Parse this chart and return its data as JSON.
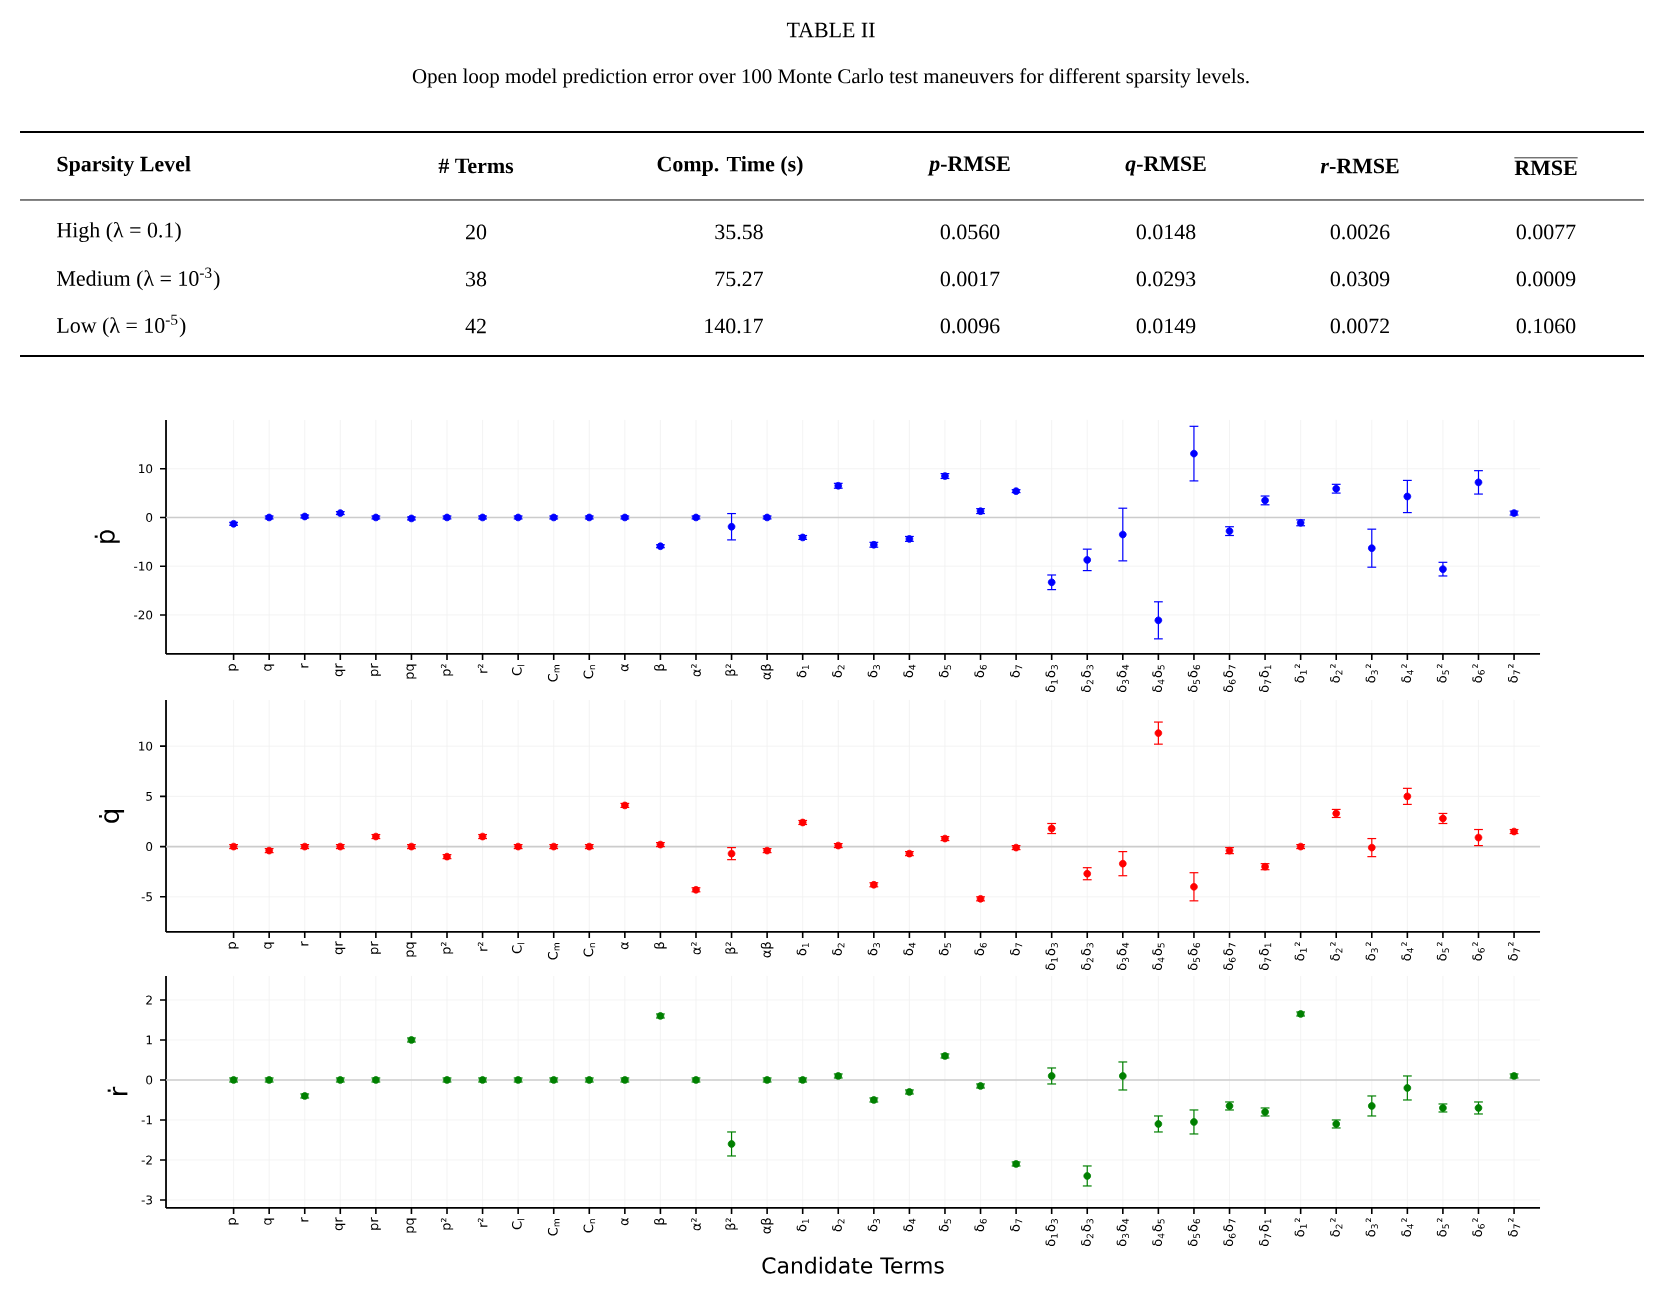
{
  "chart_data": [
    {
      "type": "other",
      "title": "TABLE II",
      "subtitle": "Open loop model prediction error over 100 Monte Carlo test maneuvers for different sparsity levels.",
      "annotations": [
        "Sparsity Level",
        "# Terms",
        "Comp. Time (s)",
        "*p*-RMSE",
        "*q*-RMSE",
        "*r*-RMSE",
        "RMSE",
        "High (λ = 0.1)",
        "20",
        "35.58",
        "0.0560",
        "0.0148",
        "0.0026",
        "0.0077",
        "Medium (λ = 10$^{-3}$)",
        "38",
        "75.27",
        "0.0017",
        "0.0293",
        "0.0309",
        "0.0009",
        "Low (λ = 10$^{-5}$)",
        "42",
        "140.17",
        "0.0096",
        "0.0149",
        "0.0072",
        "0.1060"
      ]
    },
    {
      "type": "scatter",
      "ylabel": "ṗ",
      "color": "#0000ff",
      "grid": true,
      "ylim": [
        -28,
        20
      ],
      "yticks": [
        -20,
        -10,
        0,
        10
      ],
      "ref_lines": [
        {
          "axis": "y",
          "value": 0,
          "color": "#cccccc"
        }
      ],
      "categories": [
        "p",
        "q",
        "r",
        "qr",
        "pr",
        "pq",
        "p²",
        "r²",
        "C$_{l}$",
        "C$_{m}$",
        "C$_{n}$",
        "α",
        "β",
        "α²",
        "β²",
        "αβ",
        "δ$_{1}$",
        "δ$_{2}$",
        "δ$_{3}$",
        "δ$_{4}$",
        "δ$_{5}$",
        "δ$_{6}$",
        "δ$_{7}$",
        "δ$_{1}$δ$_{3}$",
        "δ$_{2}$δ$_{3}$",
        "δ$_{3}$δ$_{4}$",
        "δ$_{4}$δ$_{5}$",
        "δ$_{5}$δ$_{6}$",
        "δ$_{6}$δ$_{7}$",
        "δ$_{7}$δ$_{1}$",
        "δ$_{1}$²",
        "δ$_{2}$²",
        "δ$_{3}$²",
        "δ$_{4}$²",
        "δ$_{5}$²",
        "δ$_{6}$²",
        "δ$_{7}$²"
      ],
      "values": [
        -1.3,
        0,
        0.2,
        0.9,
        0,
        -0.2,
        0,
        0,
        0,
        0,
        0,
        0,
        -5.9,
        0,
        -1.9,
        0,
        -4.1,
        6.5,
        -5.6,
        -4.4,
        8.5,
        1.3,
        5.4,
        -13.3,
        -8.7,
        -3.5,
        -21.1,
        13.1,
        -2.8,
        3.5,
        -1.1,
        5.9,
        -6.3,
        4.3,
        -10.6,
        7.2,
        0.9
      ],
      "errors": [
        0.3,
        0.3,
        0.3,
        0.3,
        0.3,
        0.3,
        0.3,
        0.3,
        0.3,
        0.3,
        0.3,
        0.3,
        0.3,
        0.3,
        2.7,
        0.3,
        0.4,
        0.5,
        0.5,
        0.5,
        0.5,
        0.5,
        0.3,
        1.5,
        2.2,
        5.4,
        3.8,
        5.6,
        0.9,
        0.9,
        0.6,
        0.9,
        3.9,
        3.3,
        1.4,
        2.4,
        0.4
      ]
    },
    {
      "type": "scatter",
      "ylabel": "q̇",
      "color": "#ff0000",
      "grid": true,
      "ylim": [
        -8.5,
        14.6
      ],
      "yticks": [
        -5,
        0,
        5,
        10
      ],
      "ref_lines": [
        {
          "axis": "y",
          "value": 0,
          "color": "#cccccc"
        }
      ],
      "categories": [
        "p",
        "q",
        "r",
        "qr",
        "pr",
        "pq",
        "p²",
        "r²",
        "C$_{l}$",
        "C$_{m}$",
        "C$_{n}$",
        "α",
        "β",
        "α²",
        "β²",
        "αβ",
        "δ$_{1}$",
        "δ$_{2}$",
        "δ$_{3}$",
        "δ$_{4}$",
        "δ$_{5}$",
        "δ$_{6}$",
        "δ$_{7}$",
        "δ$_{1}$δ$_{3}$",
        "δ$_{2}$δ$_{3}$",
        "δ$_{3}$δ$_{4}$",
        "δ$_{4}$δ$_{5}$",
        "δ$_{5}$δ$_{6}$",
        "δ$_{6}$δ$_{7}$",
        "δ$_{7}$δ$_{1}$",
        "δ$_{1}$²",
        "δ$_{2}$²",
        "δ$_{3}$²",
        "δ$_{4}$²",
        "δ$_{5}$²",
        "δ$_{6}$²",
        "δ$_{7}$²"
      ],
      "values": [
        0,
        -0.4,
        0,
        0,
        1.0,
        0,
        -1.0,
        1.0,
        0,
        0,
        0,
        4.1,
        0.2,
        -4.3,
        -0.7,
        -0.4,
        2.4,
        0.1,
        -3.8,
        -0.7,
        0.8,
        -5.2,
        -0.1,
        1.8,
        -2.7,
        -1.7,
        11.3,
        -4.0,
        -0.4,
        -2.0,
        0,
        3.3,
        -0.1,
        5.0,
        2.8,
        0.9,
        1.5
      ],
      "errors": [
        0.2,
        0.2,
        0.2,
        0.2,
        0.2,
        0.2,
        0.2,
        0.2,
        0.2,
        0.2,
        0.2,
        0.2,
        0.2,
        0.2,
        0.6,
        0.2,
        0.2,
        0.2,
        0.2,
        0.2,
        0.2,
        0.2,
        0.2,
        0.5,
        0.6,
        1.2,
        1.1,
        1.4,
        0.3,
        0.3,
        0.2,
        0.4,
        0.9,
        0.8,
        0.5,
        0.8,
        0.2
      ]
    },
    {
      "type": "scatter",
      "ylabel": "ṙ",
      "xlabel": "Candidate Terms",
      "color": "#008000",
      "grid": true,
      "ylim": [
        -3.2,
        2.6
      ],
      "yticks": [
        -3,
        -2,
        -1,
        0,
        1,
        2
      ],
      "ref_lines": [
        {
          "axis": "y",
          "value": 0,
          "color": "#cccccc"
        }
      ],
      "categories": [
        "p",
        "q",
        "r",
        "qr",
        "pr",
        "pq",
        "p²",
        "r²",
        "C$_{l}$",
        "C$_{m}$",
        "C$_{n}$",
        "α",
        "β",
        "α²",
        "β²",
        "αβ",
        "δ$_{1}$",
        "δ$_{2}$",
        "δ$_{3}$",
        "δ$_{4}$",
        "δ$_{5}$",
        "δ$_{6}$",
        "δ$_{7}$",
        "δ$_{1}$δ$_{3}$",
        "δ$_{2}$δ$_{3}$",
        "δ$_{3}$δ$_{4}$",
        "δ$_{4}$δ$_{5}$",
        "δ$_{5}$δ$_{6}$",
        "δ$_{6}$δ$_{7}$",
        "δ$_{7}$δ$_{1}$",
        "δ$_{1}$²",
        "δ$_{2}$²",
        "δ$_{3}$²",
        "δ$_{4}$²",
        "δ$_{5}$²",
        "δ$_{6}$²",
        "δ$_{7}$²"
      ],
      "values": [
        0,
        0,
        -0.4,
        0,
        0,
        1.0,
        0,
        0,
        0,
        0,
        0,
        0,
        1.6,
        0,
        -1.6,
        0,
        0,
        0.1,
        -0.5,
        -0.3,
        0.6,
        -0.15,
        -2.1,
        0.1,
        -2.4,
        0.1,
        -1.1,
        -1.05,
        -0.65,
        -0.8,
        1.65,
        -1.1,
        -0.65,
        -0.2,
        -0.7,
        -0.7,
        0.1
      ],
      "errors": [
        0.05,
        0.05,
        0.05,
        0.05,
        0.05,
        0.05,
        0.05,
        0.05,
        0.05,
        0.05,
        0.05,
        0.05,
        0.05,
        0.05,
        0.3,
        0.05,
        0.05,
        0.05,
        0.05,
        0.05,
        0.05,
        0.05,
        0.05,
        0.2,
        0.25,
        0.35,
        0.2,
        0.3,
        0.1,
        0.1,
        0.05,
        0.1,
        0.25,
        0.3,
        0.1,
        0.15,
        0.05
      ]
    }
  ]
}
